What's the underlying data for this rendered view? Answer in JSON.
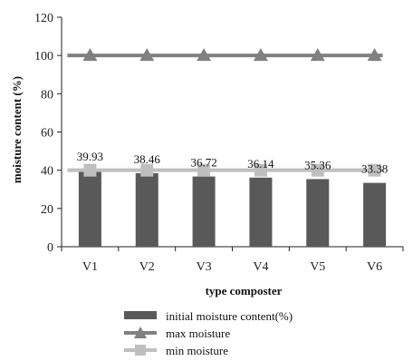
{
  "chart_data": {
    "type": "bar",
    "categories": [
      "V1",
      "V2",
      "V3",
      "V4",
      "V5",
      "V6"
    ],
    "series": [
      {
        "name": "initial moisture content(%)",
        "kind": "bar",
        "values": [
          39.93,
          38.46,
          36.72,
          36.14,
          35.36,
          33.38
        ],
        "color": "#595959",
        "labels": [
          "39.93",
          "38.46",
          "36.72",
          "36.14",
          "35.36",
          "33.38"
        ]
      },
      {
        "name": "max moisture",
        "kind": "line",
        "marker": "triangle",
        "values": [
          100,
          100,
          100,
          100,
          100,
          100
        ],
        "color": "#808080"
      },
      {
        "name": "min moisture",
        "kind": "line",
        "marker": "square",
        "values": [
          40,
          40,
          40,
          40,
          40,
          40
        ],
        "color": "#bfbfbf"
      }
    ],
    "xlabel": "type composter",
    "ylabel": "moisture content (%)",
    "ylim": [
      0,
      120
    ],
    "yticks": [
      "0",
      "20",
      "40",
      "60",
      "80",
      "100",
      "120"
    ],
    "grid": false,
    "legend_position": "bottom"
  }
}
